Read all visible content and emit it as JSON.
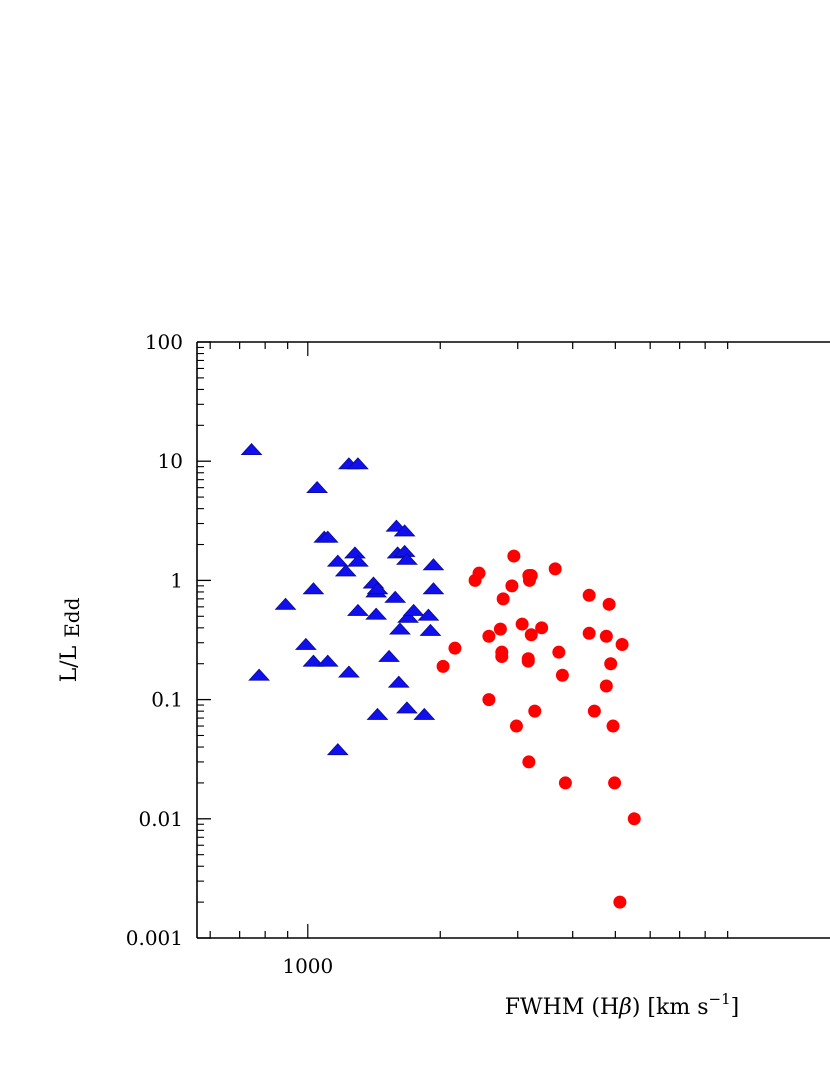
{
  "chart_data": {
    "type": "scatter",
    "title": "",
    "xlabel": "FWHM (Hβ) [km s⁻¹]",
    "xlabel_parts": {
      "prefix": "FWHM (H",
      "greek": "β",
      "suffix": ") [km s",
      "sup": "−1",
      "close": "]"
    },
    "ylabel": {
      "main": "L/L",
      "sub": "Edd"
    },
    "xscale": "log",
    "yscale": "log",
    "xlim": [
      560,
      10000
    ],
    "ylim": [
      0.001,
      100
    ],
    "xticklabels": [
      "1000"
    ],
    "yticklabels": [
      "0.001",
      "0.01",
      "0.1",
      "1",
      "10",
      "100"
    ],
    "grid": false,
    "series": [
      {
        "marker": "triangle",
        "color": "#1010ee",
        "points": [
          [
            745,
            12.5
          ],
          [
            775,
            0.16
          ],
          [
            890,
            0.63
          ],
          [
            990,
            0.29
          ],
          [
            1030,
            0.85
          ],
          [
            1030,
            0.21
          ],
          [
            1050,
            6.0
          ],
          [
            1090,
            2.3
          ],
          [
            1110,
            2.3
          ],
          [
            1110,
            0.21
          ],
          [
            1170,
            1.45
          ],
          [
            1170,
            0.038
          ],
          [
            1220,
            1.2
          ],
          [
            1240,
            9.5
          ],
          [
            1240,
            0.17
          ],
          [
            1280,
            1.7
          ],
          [
            1300,
            1.45
          ],
          [
            1300,
            0.56
          ],
          [
            1300,
            9.5
          ],
          [
            1410,
            0.95
          ],
          [
            1430,
            0.8
          ],
          [
            1430,
            0.52
          ],
          [
            1440,
            0.85
          ],
          [
            1440,
            0.075
          ],
          [
            1530,
            0.23
          ],
          [
            1580,
            0.72
          ],
          [
            1590,
            2.85
          ],
          [
            1600,
            1.7
          ],
          [
            1610,
            0.14
          ],
          [
            1620,
            0.39
          ],
          [
            1660,
            1.75
          ],
          [
            1660,
            2.6
          ],
          [
            1680,
            1.5
          ],
          [
            1680,
            0.085
          ],
          [
            1690,
            0.49
          ],
          [
            1740,
            0.56
          ],
          [
            1840,
            0.075
          ],
          [
            1880,
            0.51
          ],
          [
            1900,
            0.38
          ],
          [
            1930,
            1.35
          ],
          [
            1930,
            0.85
          ]
        ]
      },
      {
        "marker": "circle",
        "color": "#ff0000",
        "points": [
          [
            2030,
            0.19
          ],
          [
            2160,
            0.27
          ],
          [
            2400,
            1.0
          ],
          [
            2450,
            1.15
          ],
          [
            2580,
            0.1
          ],
          [
            2580,
            0.34
          ],
          [
            2740,
            0.39
          ],
          [
            2760,
            0.25
          ],
          [
            2760,
            0.23
          ],
          [
            2780,
            0.7
          ],
          [
            2910,
            0.9
          ],
          [
            2940,
            1.6
          ],
          [
            2980,
            0.06
          ],
          [
            3070,
            0.43
          ],
          [
            3170,
            0.22
          ],
          [
            3170,
            0.21
          ],
          [
            3180,
            0.03
          ],
          [
            3180,
            1.1
          ],
          [
            3190,
            1.0
          ],
          [
            3220,
            1.1
          ],
          [
            3220,
            0.35
          ],
          [
            3280,
            0.08
          ],
          [
            3400,
            0.4
          ],
          [
            3650,
            1.25
          ],
          [
            3720,
            0.25
          ],
          [
            3790,
            0.16
          ],
          [
            3850,
            0.02
          ],
          [
            4360,
            0.36
          ],
          [
            4360,
            0.75
          ],
          [
            4480,
            0.08
          ],
          [
            4770,
            0.34
          ],
          [
            4770,
            0.13
          ],
          [
            4840,
            0.63
          ],
          [
            4880,
            0.2
          ],
          [
            4940,
            0.06
          ],
          [
            4980,
            0.02
          ],
          [
            5120,
            0.002
          ],
          [
            5180,
            0.29
          ],
          [
            5520,
            0.01
          ]
        ]
      }
    ]
  }
}
